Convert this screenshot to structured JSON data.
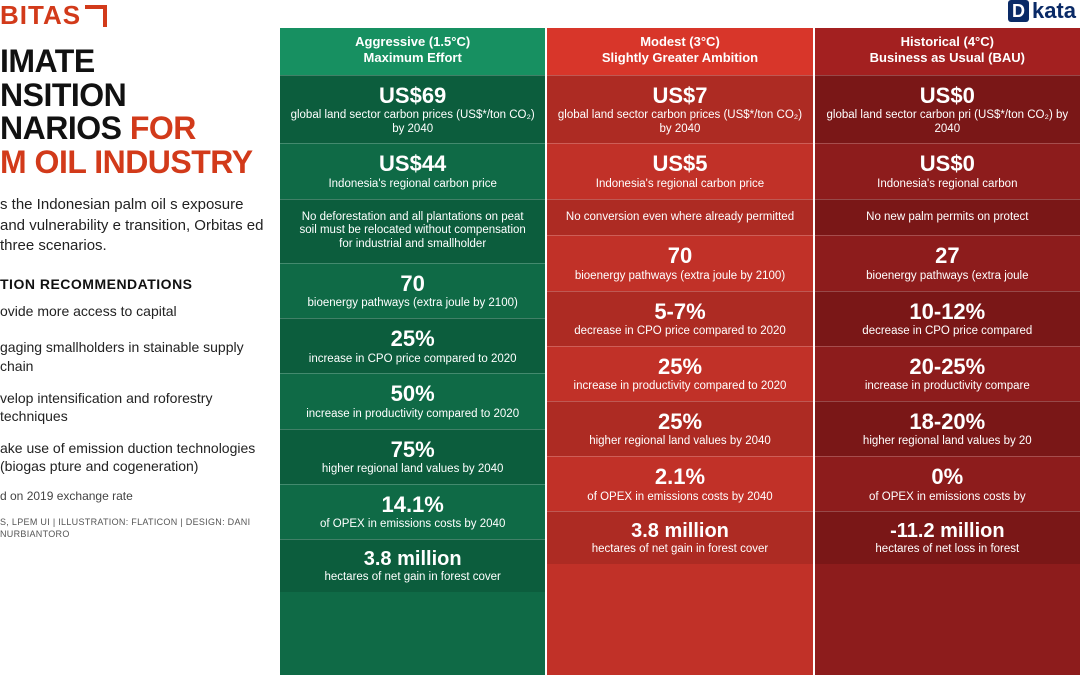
{
  "brand_left": "BITAS",
  "brand_right_prefix": "D",
  "brand_right": "kata",
  "title_line1": "IMATE",
  "title_line2": "NSITION",
  "title_line3": "NARIOS",
  "title_accent1": "FOR",
  "title_accent2": "M OIL INDUSTRY",
  "intro": "s the Indonesian palm oil s exposure and vulnerability e transition, Orbitas ed three scenarios.",
  "rec_head": "TION RECOMMENDATIONS",
  "recs": [
    "ovide more access to capital",
    "gaging smallholders in stainable supply chain",
    "velop intensification and roforestry techniques",
    "ake use of emission duction technologies (biogas pture and cogeneration)"
  ],
  "footnote": "d on 2019 exchange rate",
  "credits": "S, LPEM UI | ILLUSTRATION: FLATICON\n | DESIGN: DANI NURBIANTORO",
  "columns": [
    {
      "head1": "Aggressive (1.5°C)",
      "head2": "Maximum Effort",
      "header_bg": "#179061",
      "bg": "#0f6a46",
      "rows": [
        {
          "big": "US$69",
          "sm": "global land sector carbon prices (US$*/ton CO₂) by 2040"
        },
        {
          "big": "US$44",
          "sm": "Indonesia's regional carbon price"
        },
        {
          "text": "No deforestation and all plantations on peat soil must be relocated without compensation for industrial and smallholder"
        },
        {
          "big": "70",
          "sm": "bioenergy pathways (extra joule by 2100)"
        },
        {
          "big": "25%",
          "sm": "increase in CPO price compared to 2020"
        },
        {
          "big": "50%",
          "sm": "increase in productivity compared to 2020"
        },
        {
          "big": "75%",
          "sm": "higher regional land values by 2040"
        },
        {
          "big": "14.1%",
          "sm": "of OPEX in emissions costs by 2040"
        },
        {
          "big": "3.8 million",
          "sm": "hectares of net gain in forest cover"
        }
      ]
    },
    {
      "head1": "Modest (3°C)",
      "head2": "Slightly Greater Ambition",
      "header_bg": "#d8362a",
      "bg": "#c13128",
      "rows": [
        {
          "big": "US$7",
          "sm": "global land sector carbon prices (US$*/ton CO₂) by 2040"
        },
        {
          "big": "US$5",
          "sm": "Indonesia's regional carbon price"
        },
        {
          "text": "No conversion even where already permitted"
        },
        {
          "big": "70",
          "sm": "bioenergy pathways (extra joule by 2100)"
        },
        {
          "big": "5-7%",
          "sm": "decrease in CPO price compared to 2020"
        },
        {
          "big": "25%",
          "sm": "increase in productivity compared to 2020"
        },
        {
          "big": "25%",
          "sm": "higher regional land values by 2040"
        },
        {
          "big": "2.1%",
          "sm": "of OPEX in emissions costs by 2040"
        },
        {
          "big": "3.8 million",
          "sm": "hectares of net gain in forest cover"
        }
      ]
    },
    {
      "head1": "Historical (4°C)",
      "head2": "Business as Usual (BAU)",
      "header_bg": "#a32020",
      "bg": "#8d1c1c",
      "rows": [
        {
          "big": "US$0",
          "sm": "global land sector carbon pri (US$*/ton CO₂) by 2040"
        },
        {
          "big": "US$0",
          "sm": "Indonesia's regional carbon"
        },
        {
          "text": "No new palm permits on protect"
        },
        {
          "big": "27",
          "sm": "bioenergy pathways (extra joule"
        },
        {
          "big": "10-12%",
          "sm": "decrease in CPO price compared"
        },
        {
          "big": "20-25%",
          "sm": "increase in productivity compare"
        },
        {
          "big": "18-20%",
          "sm": "higher regional land values by 20"
        },
        {
          "big": "0%",
          "sm": "of OPEX in emissions costs by"
        },
        {
          "big": "-11.2 million",
          "sm": "hectares of net loss in forest"
        }
      ]
    }
  ]
}
